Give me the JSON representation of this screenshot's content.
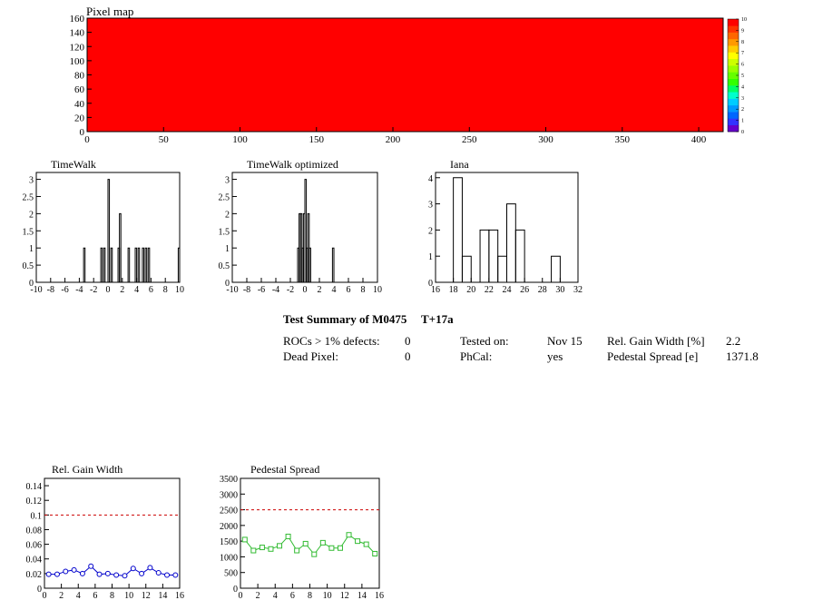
{
  "summary": {
    "title": "Test Summary of M0475",
    "temp": "T+17a",
    "rocs_label": "ROCs > 1% defects:",
    "rocs_value": "0",
    "dead_label": "Dead Pixel:",
    "dead_value": "0",
    "tested_label": "Tested on:",
    "tested_value": "Nov 15",
    "phcal_label": "PhCal:",
    "phcal_value": "yes",
    "gain_label": "Rel. Gain Width [%]",
    "gain_value": "2.2",
    "ped_label": "Pedestal Spread [e]",
    "ped_value": "1371.8"
  },
  "chart_data": [
    {
      "id": "pixelmap",
      "type": "heatmap",
      "title": "Pixel map",
      "xlim": [
        0,
        416
      ],
      "ylim": [
        0,
        160
      ],
      "xticks": [
        0,
        50,
        100,
        150,
        200,
        250,
        300,
        350,
        400
      ],
      "yticks": [
        0,
        20,
        40,
        60,
        80,
        100,
        120,
        140,
        160
      ],
      "fill_value": 10,
      "fill_color": "#ff0000",
      "zlim": [
        0,
        10
      ],
      "zticks": [
        0,
        1,
        2,
        3,
        4,
        5,
        6,
        7,
        8,
        9,
        10
      ],
      "palette": [
        "#6600cc",
        "#3333ff",
        "#0066ff",
        "#0099ff",
        "#00ccff",
        "#00ffcc",
        "#00ff66",
        "#33ff00",
        "#66ff00",
        "#99ff00",
        "#ccff00",
        "#ffff00",
        "#ffcc00",
        "#ff9900",
        "#ff6600",
        "#ff3300",
        "#ff0000"
      ]
    },
    {
      "id": "timewalk",
      "type": "bar",
      "title": "TimeWalk",
      "xlim": [
        -10,
        10
      ],
      "ylim": [
        0,
        3.2
      ],
      "xticks": [
        -10,
        -8,
        -6,
        -4,
        -2,
        0,
        2,
        4,
        6,
        8,
        10
      ],
      "yticks": [
        0,
        0.5,
        1,
        1.5,
        2,
        2.5,
        3
      ],
      "yticklabels": [
        "0",
        "0.5",
        "1",
        "1.5",
        "2",
        "2.5",
        "3"
      ],
      "bin_width": 0.2,
      "bins": [
        [
          -3.4,
          1
        ],
        [
          -1.0,
          1
        ],
        [
          -0.6,
          1
        ],
        [
          0.0,
          3
        ],
        [
          0.4,
          1
        ],
        [
          1.4,
          1
        ],
        [
          1.6,
          2
        ],
        [
          2.8,
          1
        ],
        [
          3.8,
          1
        ],
        [
          4.2,
          1
        ],
        [
          4.8,
          1
        ],
        [
          5.2,
          1
        ],
        [
          5.6,
          1
        ],
        [
          9.8,
          1
        ]
      ]
    },
    {
      "id": "timewalk_opt",
      "type": "bar",
      "title": "TimeWalk optimized",
      "xlim": [
        -10,
        10
      ],
      "ylim": [
        0,
        3.2
      ],
      "xticks": [
        -10,
        -8,
        -6,
        -4,
        -2,
        0,
        2,
        4,
        6,
        8,
        10
      ],
      "yticks": [
        0,
        0.5,
        1,
        1.5,
        2,
        2.5,
        3
      ],
      "yticklabels": [
        "0",
        "0.5",
        "1",
        "1.5",
        "2",
        "2.5",
        "3"
      ],
      "bin_width": 0.2,
      "bins": [
        [
          -1.0,
          1
        ],
        [
          -0.8,
          2
        ],
        [
          -0.6,
          2
        ],
        [
          -0.4,
          1
        ],
        [
          -0.2,
          2
        ],
        [
          0.0,
          3
        ],
        [
          0.2,
          1
        ],
        [
          0.4,
          2
        ],
        [
          0.6,
          1
        ],
        [
          3.8,
          1
        ]
      ]
    },
    {
      "id": "iana",
      "type": "bar",
      "title": "Iana",
      "xlim": [
        16,
        32
      ],
      "ylim": [
        0,
        4.2
      ],
      "xticks": [
        16,
        18,
        20,
        22,
        24,
        26,
        28,
        30,
        32
      ],
      "yticks": [
        0,
        1,
        2,
        3,
        4
      ],
      "yticklabels": [
        "0",
        "1",
        "2",
        "3",
        "4"
      ],
      "bin_width": 1,
      "bins": [
        [
          18,
          4
        ],
        [
          19,
          1
        ],
        [
          21,
          2
        ],
        [
          22,
          2
        ],
        [
          23,
          1
        ],
        [
          24,
          3
        ],
        [
          25,
          2
        ],
        [
          29,
          1
        ]
      ]
    },
    {
      "id": "gain",
      "type": "line",
      "title": "Rel. Gain Width",
      "color": "#0000cc",
      "marker": "circle",
      "xlim": [
        0,
        16
      ],
      "ylim": [
        0,
        0.15
      ],
      "xticks": [
        0,
        2,
        4,
        6,
        8,
        10,
        12,
        14,
        16
      ],
      "yticks": [
        0,
        0.02,
        0.04,
        0.06,
        0.08,
        0.1,
        0.12,
        0.14
      ],
      "yticklabels": [
        "0",
        "0.02",
        "0.04",
        "0.06",
        "0.08",
        "0.1",
        "0.12",
        "0.14"
      ],
      "reference": 0.1,
      "x": [
        0.5,
        1.5,
        2.5,
        3.5,
        4.5,
        5.5,
        6.5,
        7.5,
        8.5,
        9.5,
        10.5,
        11.5,
        12.5,
        13.5,
        14.5,
        15.5
      ],
      "y": [
        0.019,
        0.019,
        0.023,
        0.025,
        0.02,
        0.03,
        0.019,
        0.02,
        0.018,
        0.017,
        0.027,
        0.02,
        0.028,
        0.021,
        0.018,
        0.018
      ]
    },
    {
      "id": "pedestal",
      "type": "line",
      "title": "Pedestal Spread",
      "color": "#33bb33",
      "marker": "square",
      "xlim": [
        0,
        16
      ],
      "ylim": [
        0,
        3500
      ],
      "xticks": [
        0,
        2,
        4,
        6,
        8,
        10,
        12,
        14,
        16
      ],
      "yticks": [
        0,
        500,
        1000,
        1500,
        2000,
        2500,
        3000,
        3500
      ],
      "yticklabels": [
        "0",
        "500",
        "1000",
        "1500",
        "2000",
        "2500",
        "3000",
        "3500"
      ],
      "reference": 2500,
      "x": [
        0.5,
        1.5,
        2.5,
        3.5,
        4.5,
        5.5,
        6.5,
        7.5,
        8.5,
        9.5,
        10.5,
        11.5,
        12.5,
        13.5,
        14.5,
        15.5
      ],
      "y": [
        1550,
        1200,
        1300,
        1250,
        1350,
        1650,
        1200,
        1420,
        1080,
        1450,
        1280,
        1280,
        1700,
        1500,
        1400,
        1100
      ]
    }
  ]
}
